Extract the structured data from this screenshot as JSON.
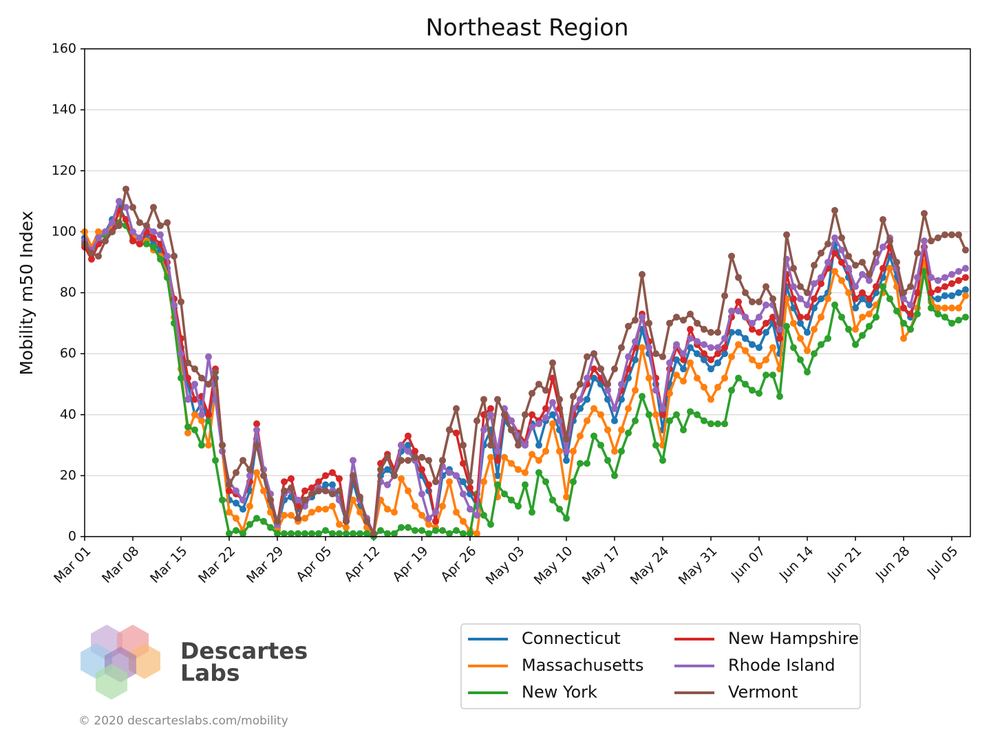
{
  "chart_data": {
    "type": "line",
    "title": "Northeast Region",
    "y_label": "Mobility m50 Index",
    "x": [
      "Mar 01",
      "Mar 02",
      "Mar 03",
      "Mar 04",
      "Mar 05",
      "Mar 06",
      "Mar 07",
      "Mar 08",
      "Mar 09",
      "Mar 10",
      "Mar 11",
      "Mar 12",
      "Mar 13",
      "Mar 14",
      "Mar 15",
      "Mar 16",
      "Mar 17",
      "Mar 18",
      "Mar 19",
      "Mar 20",
      "Mar 21",
      "Mar 22",
      "Mar 23",
      "Mar 24",
      "Mar 25",
      "Mar 26",
      "Mar 27",
      "Mar 28",
      "Mar 29",
      "Mar 30",
      "Mar 31",
      "Apr 01",
      "Apr 02",
      "Apr 03",
      "Apr 04",
      "Apr 05",
      "Apr 06",
      "Apr 07",
      "Apr 08",
      "Apr 09",
      "Apr 10",
      "Apr 11",
      "Apr 12",
      "Apr 13",
      "Apr 14",
      "Apr 15",
      "Apr 16",
      "Apr 17",
      "Apr 18",
      "Apr 19",
      "Apr 20",
      "Apr 21",
      "Apr 22",
      "Apr 23",
      "Apr 24",
      "Apr 25",
      "Apr 26",
      "Apr 27",
      "Apr 28",
      "Apr 29",
      "Apr 30",
      "May 01",
      "May 02",
      "May 03",
      "May 04",
      "May 05",
      "May 06",
      "May 07",
      "May 08",
      "May 09",
      "May 10",
      "May 11",
      "May 12",
      "May 13",
      "May 14",
      "May 15",
      "May 16",
      "May 17",
      "May 18",
      "May 19",
      "May 20",
      "May 21",
      "May 22",
      "May 23",
      "May 24",
      "May 25",
      "May 26",
      "May 27",
      "May 28",
      "May 29",
      "May 30",
      "May 31",
      "Jun 01",
      "Jun 02",
      "Jun 03",
      "Jun 04",
      "Jun 05",
      "Jun 06",
      "Jun 07",
      "Jun 08",
      "Jun 09",
      "Jun 10",
      "Jun 11",
      "Jun 12",
      "Jun 13",
      "Jun 14",
      "Jun 15",
      "Jun 16",
      "Jun 17",
      "Jun 18",
      "Jun 19",
      "Jun 20",
      "Jun 21",
      "Jun 22",
      "Jun 23",
      "Jun 24",
      "Jun 25",
      "Jun 26",
      "Jun 27",
      "Jun 28",
      "Jun 29",
      "Jun 30",
      "Jul 01",
      "Jul 02",
      "Jul 03",
      "Jul 04",
      "Jul 05",
      "Jul 06",
      "Jul 07"
    ],
    "xticks": [
      "Mar 01",
      "Mar 08",
      "Mar 15",
      "Mar 22",
      "Mar 29",
      "Apr 05",
      "Apr 12",
      "Apr 19",
      "Apr 26",
      "May 03",
      "May 10",
      "May 17",
      "May 24",
      "May 31",
      "Jun 07",
      "Jun 14",
      "Jun 21",
      "Jun 28",
      "Jul 05"
    ],
    "ylim": [
      0,
      160
    ],
    "yticks": [
      0,
      20,
      40,
      60,
      80,
      100,
      120,
      140,
      160
    ],
    "grid": true,
    "legend_position": "bottom",
    "legend_columns": 2,
    "series": [
      {
        "name": "Connecticut",
        "color": "#1f77b4",
        "values": [
          98,
          93,
          97,
          100,
          104,
          108,
          104,
          98,
          97,
          99,
          96,
          94,
          88,
          75,
          62,
          50,
          40,
          44,
          38,
          52,
          30,
          12,
          11,
          9,
          15,
          32,
          20,
          10,
          3,
          12,
          13,
          9,
          11,
          13,
          15,
          17,
          17,
          12,
          5,
          18,
          10,
          5,
          1,
          20,
          22,
          20,
          28,
          30,
          25,
          20,
          15,
          5,
          20,
          22,
          20,
          18,
          14,
          10,
          30,
          35,
          20,
          38,
          35,
          32,
          30,
          37,
          30,
          38,
          40,
          35,
          25,
          38,
          42,
          45,
          52,
          50,
          45,
          38,
          45,
          52,
          58,
          68,
          60,
          50,
          35,
          50,
          58,
          55,
          62,
          60,
          58,
          55,
          57,
          60,
          67,
          67,
          65,
          63,
          62,
          67,
          70,
          60,
          82,
          75,
          70,
          67,
          75,
          78,
          80,
          96,
          90,
          85,
          75,
          78,
          76,
          80,
          85,
          92,
          85,
          75,
          72,
          80,
          95,
          78,
          78,
          79,
          79,
          80,
          81
        ]
      },
      {
        "name": "Massachusetts",
        "color": "#ff7f0e",
        "values": [
          100,
          95,
          100,
          100,
          102,
          106,
          104,
          98,
          96,
          97,
          94,
          92,
          86,
          72,
          55,
          34,
          40,
          38,
          30,
          48,
          28,
          8,
          6,
          2,
          10,
          21,
          15,
          8,
          2,
          7,
          7,
          5,
          6,
          8,
          9,
          9,
          10,
          4,
          3,
          12,
          8,
          3,
          1,
          12,
          9,
          8,
          19,
          15,
          10,
          7,
          4,
          3,
          10,
          18,
          8,
          5,
          2,
          1,
          18,
          26,
          13,
          26,
          24,
          22,
          21,
          27,
          25,
          28,
          37,
          28,
          13,
          28,
          33,
          38,
          42,
          40,
          35,
          28,
          35,
          42,
          48,
          62,
          52,
          40,
          30,
          47,
          53,
          51,
          57,
          52,
          49,
          45,
          49,
          52,
          59,
          63,
          61,
          58,
          56,
          58,
          62,
          55,
          78,
          70,
          65,
          61,
          68,
          72,
          78,
          87,
          84,
          80,
          68,
          72,
          73,
          76,
          80,
          88,
          82,
          65,
          68,
          75,
          90,
          77,
          75,
          75,
          75,
          75,
          79
        ]
      },
      {
        "name": "New York",
        "color": "#2ca02c",
        "values": [
          97,
          93,
          98,
          99,
          100,
          103,
          102,
          97,
          96,
          96,
          95,
          91,
          85,
          70,
          52,
          36,
          35,
          30,
          40,
          25,
          12,
          1,
          2,
          1,
          4,
          6,
          5,
          3,
          1,
          1,
          1,
          1,
          1,
          1,
          1,
          2,
          1,
          1,
          1,
          1,
          1,
          1,
          0,
          2,
          1,
          1,
          3,
          3,
          2,
          2,
          1,
          2,
          2,
          1,
          2,
          1,
          1,
          14,
          7,
          4,
          17,
          14,
          12,
          10,
          17,
          8,
          21,
          18,
          12,
          9,
          6,
          18,
          24,
          24,
          33,
          30,
          25,
          20,
          28,
          34,
          38,
          46,
          40,
          30,
          25,
          38,
          40,
          35,
          41,
          40,
          38,
          37,
          37,
          37,
          48,
          52,
          50,
          48,
          47,
          53,
          53,
          46,
          69,
          62,
          58,
          54,
          60,
          63,
          65,
          76,
          72,
          68,
          63,
          66,
          69,
          72,
          82,
          78,
          74,
          70,
          68,
          73,
          87,
          75,
          73,
          72,
          70,
          71,
          72
        ]
      },
      {
        "name": "New Hampshire",
        "color": "#d62728",
        "values": [
          95,
          91,
          96,
          97,
          100,
          107,
          104,
          97,
          96,
          100,
          98,
          96,
          90,
          78,
          65,
          52,
          45,
          46,
          40,
          55,
          30,
          15,
          14,
          12,
          18,
          37,
          22,
          12,
          4,
          18,
          19,
          10,
          15,
          16,
          18,
          20,
          21,
          19,
          5,
          20,
          12,
          6,
          1,
          24,
          27,
          22,
          30,
          33,
          28,
          22,
          17,
          5,
          25,
          35,
          34,
          24,
          16,
          12,
          40,
          42,
          25,
          40,
          38,
          34,
          31,
          40,
          38,
          42,
          52,
          42,
          28,
          40,
          45,
          50,
          55,
          52,
          48,
          42,
          48,
          55,
          62,
          73,
          64,
          52,
          40,
          55,
          62,
          58,
          68,
          63,
          60,
          58,
          60,
          62,
          72,
          77,
          72,
          68,
          67,
          70,
          72,
          65,
          86,
          78,
          72,
          72,
          78,
          83,
          88,
          93,
          90,
          87,
          78,
          80,
          78,
          82,
          88,
          95,
          88,
          75,
          73,
          80,
          95,
          80,
          81,
          82,
          83,
          84,
          85
        ]
      },
      {
        "name": "Rhode Island",
        "color": "#9467bd",
        "values": [
          97,
          94,
          98,
          100,
          103,
          110,
          108,
          100,
          98,
          102,
          100,
          99,
          92,
          76,
          60,
          45,
          50,
          40,
          59,
          45,
          28,
          18,
          15,
          12,
          20,
          35,
          22,
          14,
          4,
          14,
          15,
          12,
          10,
          14,
          16,
          15,
          15,
          12,
          6,
          25,
          12,
          6,
          1,
          18,
          17,
          20,
          30,
          28,
          25,
          14,
          6,
          8,
          23,
          21,
          20,
          14,
          9,
          7,
          35,
          40,
          28,
          42,
          38,
          33,
          30,
          36,
          37,
          39,
          44,
          38,
          28,
          42,
          45,
          52,
          60,
          55,
          48,
          42,
          50,
          59,
          64,
          72,
          62,
          48,
          42,
          57,
          63,
          60,
          65,
          64,
          63,
          62,
          62,
          65,
          74,
          74,
          72,
          70,
          72,
          76,
          76,
          68,
          91,
          82,
          78,
          76,
          83,
          85,
          90,
          98,
          94,
          88,
          82,
          86,
          84,
          90,
          95,
          98,
          88,
          78,
          76,
          85,
          97,
          85,
          84,
          85,
          86,
          87,
          88
        ]
      },
      {
        "name": "Vermont",
        "color": "#8c564b",
        "values": [
          96,
          93,
          92,
          97,
          100,
          102,
          114,
          108,
          103,
          102,
          108,
          102,
          103,
          92,
          77,
          57,
          55,
          52,
          50,
          54,
          30,
          17,
          21,
          25,
          22,
          30,
          20,
          12,
          5,
          15,
          16,
          6,
          12,
          14,
          15,
          15,
          14,
          15,
          5,
          20,
          13,
          5,
          1,
          22,
          26,
          20,
          25,
          25,
          26,
          26,
          25,
          18,
          25,
          35,
          42,
          30,
          18,
          38,
          45,
          30,
          45,
          40,
          35,
          30,
          40,
          47,
          50,
          48,
          57,
          45,
          32,
          46,
          50,
          59,
          60,
          55,
          50,
          55,
          62,
          69,
          71,
          86,
          70,
          60,
          59,
          70,
          72,
          71,
          73,
          70,
          68,
          67,
          67,
          79,
          92,
          85,
          80,
          77,
          77,
          82,
          78,
          70,
          99,
          88,
          82,
          80,
          89,
          93,
          96,
          107,
          98,
          92,
          89,
          90,
          86,
          93,
          104,
          97,
          90,
          80,
          82,
          93,
          106,
          97,
          98,
          99,
          99,
          99,
          94
        ]
      }
    ]
  },
  "branding": {
    "name_line1": "Descartes",
    "name_line2": "Labs",
    "credit": "© 2020 descarteslabs.com/mobility"
  }
}
